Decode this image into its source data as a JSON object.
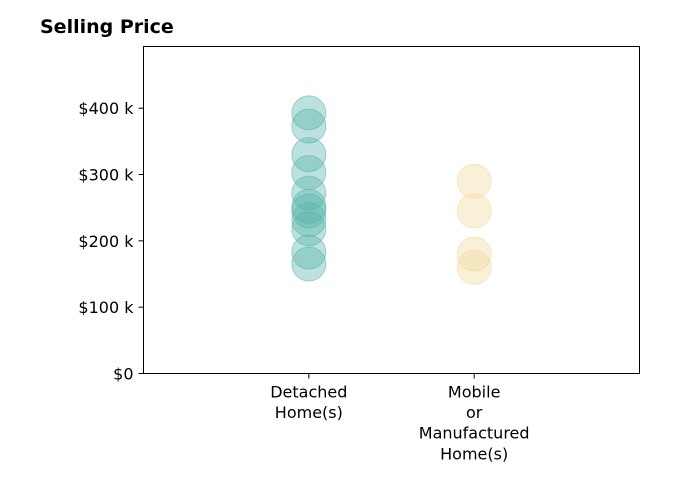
{
  "chart_data": {
    "type": "scatter",
    "title": "Selling Price",
    "xlabel": "",
    "ylabel": "",
    "categories": [
      {
        "lines": [
          "Detached",
          "Home(s)"
        ]
      },
      {
        "lines": [
          "Mobile",
          "or",
          "Manufactured",
          "Home(s)"
        ]
      }
    ],
    "y_ticks": [
      {
        "value": 0,
        "label": "$0"
      },
      {
        "value": 100000,
        "label": "$100 k"
      },
      {
        "value": 200000,
        "label": "$200 k"
      },
      {
        "value": 300000,
        "label": "$300 k"
      },
      {
        "value": 400000,
        "label": "$400 k"
      }
    ],
    "ylim": [
      0,
      493000
    ],
    "xlim": [
      -1,
      2
    ],
    "grid": false,
    "series": [
      {
        "category_index": 0,
        "color": "#5ab4ac",
        "values": [
          393000,
          373000,
          330000,
          303000,
          272000,
          252000,
          245000,
          232000,
          218000,
          183000,
          165000
        ]
      },
      {
        "category_index": 1,
        "color": "#f0d99a",
        "values": [
          290000,
          245000,
          180000,
          160000
        ]
      }
    ]
  }
}
